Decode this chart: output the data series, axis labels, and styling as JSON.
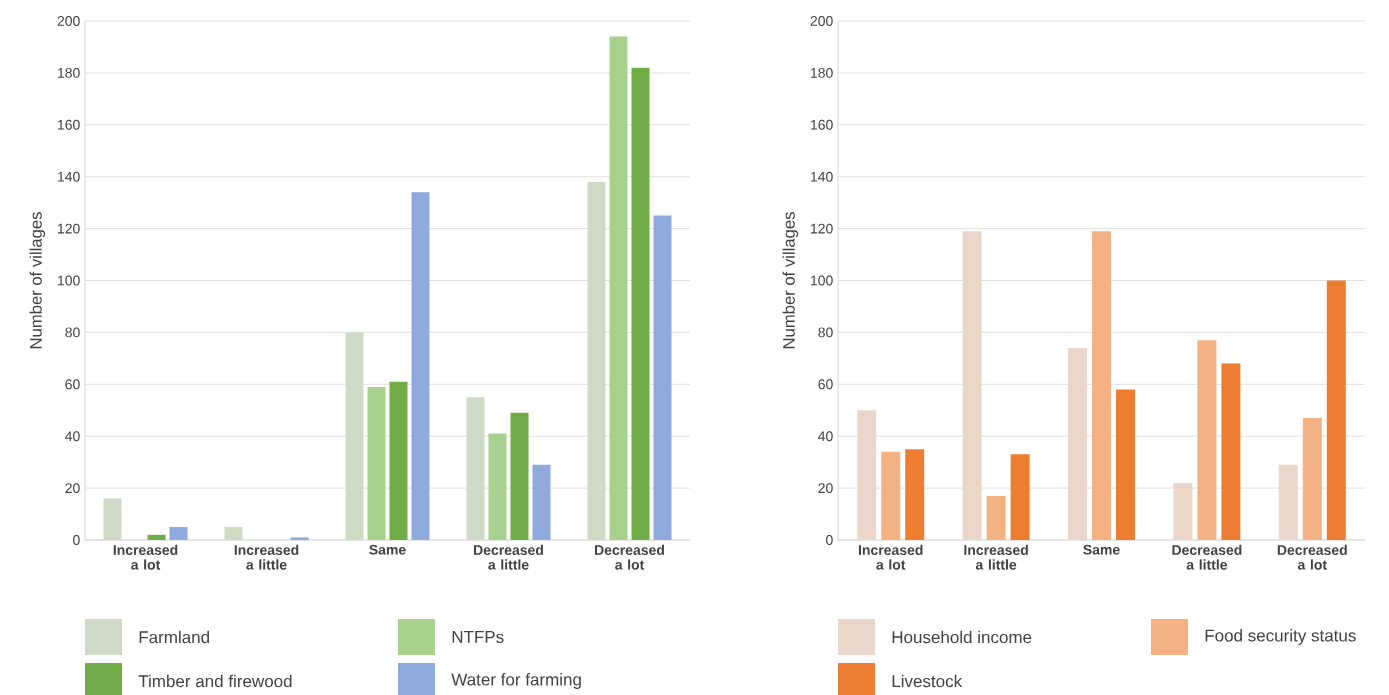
{
  "chart_data": [
    {
      "type": "bar",
      "ylabel": "Number of villages",
      "categories": [
        "Increased a lot",
        "Increased a little",
        "Same",
        "Decreased a little",
        "Decreased a lot"
      ],
      "ylim": [
        0,
        200
      ],
      "yticks": [
        0,
        20,
        40,
        60,
        80,
        100,
        120,
        140,
        160,
        180,
        200
      ],
      "grid": "y",
      "legend": "bottom",
      "series": [
        {
          "name": "Farmland",
          "color": "#cfdcc5",
          "values": [
            16,
            5,
            80,
            55,
            138
          ]
        },
        {
          "name": "NTFPs",
          "color": "#a9d18e",
          "values": [
            0,
            0,
            59,
            41,
            194
          ]
        },
        {
          "name": "Timber and firewood",
          "color": "#70ad47",
          "values": [
            2,
            0,
            61,
            49,
            182
          ]
        },
        {
          "name": "Water for farming",
          "color": "#8faadc",
          "values": [
            5,
            1,
            134,
            29,
            125
          ]
        }
      ]
    },
    {
      "type": "bar",
      "ylabel": "Number of villages",
      "categories": [
        "Increased a lot",
        "Increased a little",
        "Same",
        "Decreased a little",
        "Decreased a lot"
      ],
      "ylim": [
        0,
        200
      ],
      "yticks": [
        0,
        20,
        40,
        60,
        80,
        100,
        120,
        140,
        160,
        180,
        200
      ],
      "grid": "y",
      "legend": "bottom",
      "series": [
        {
          "name": "Household income",
          "color": "#ebd7c9",
          "values": [
            50,
            119,
            74,
            22,
            29
          ]
        },
        {
          "name": "Food security status",
          "color": "#f4b183",
          "values": [
            34,
            17,
            119,
            77,
            47
          ]
        },
        {
          "name": "Livestock",
          "color": "#ed7d31",
          "values": [
            35,
            33,
            58,
            68,
            100
          ]
        }
      ]
    }
  ]
}
